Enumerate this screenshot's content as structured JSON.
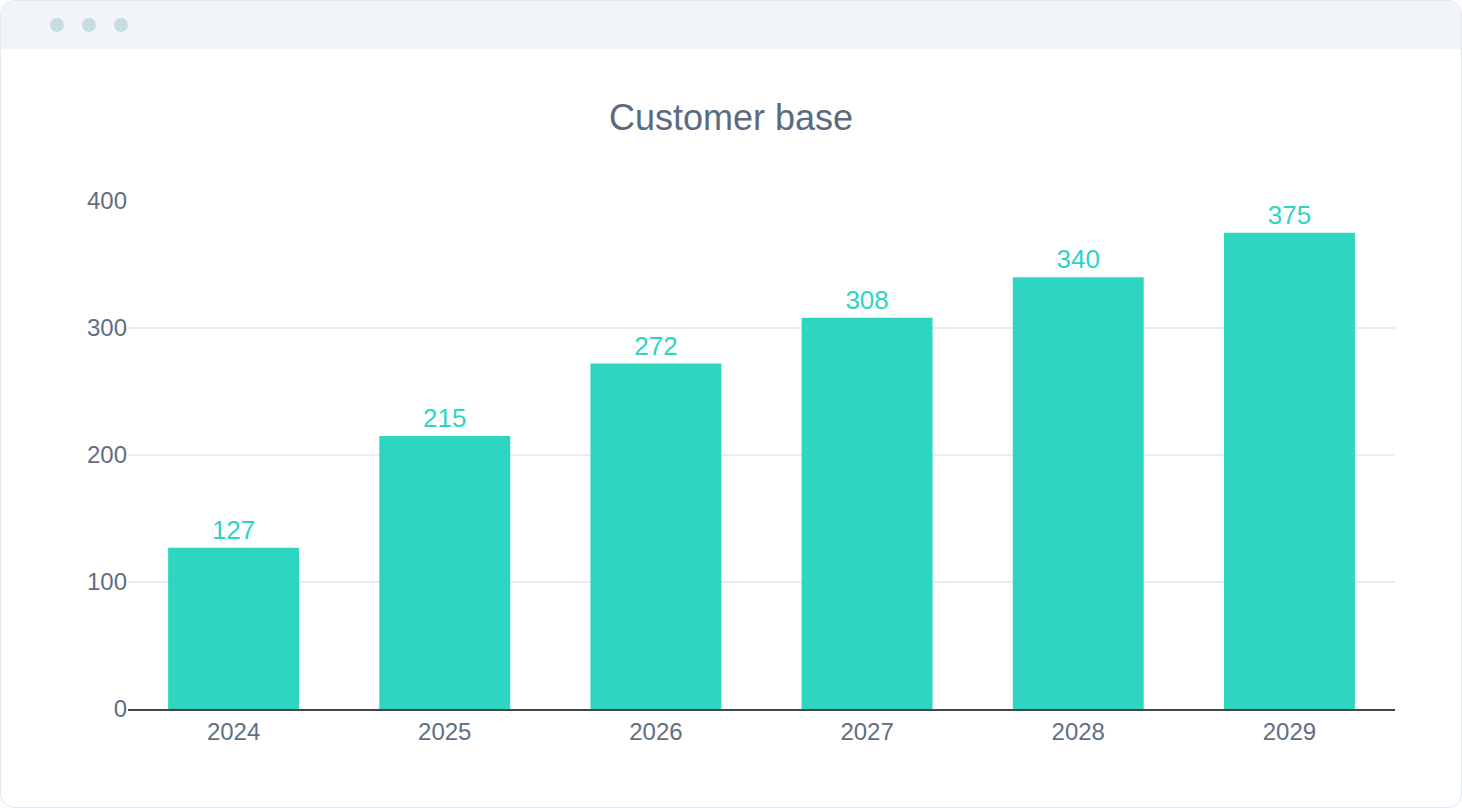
{
  "chart_data": {
    "type": "bar",
    "title": "Customer base",
    "categories": [
      "2024",
      "2025",
      "2026",
      "2027",
      "2028",
      "2029"
    ],
    "values": [
      127,
      215,
      272,
      308,
      340,
      375
    ],
    "color": "#2ed5c0",
    "ylim": [
      0,
      400
    ],
    "yticks": [
      0,
      100,
      200,
      300,
      400
    ],
    "grid": true,
    "data_labels": true
  }
}
